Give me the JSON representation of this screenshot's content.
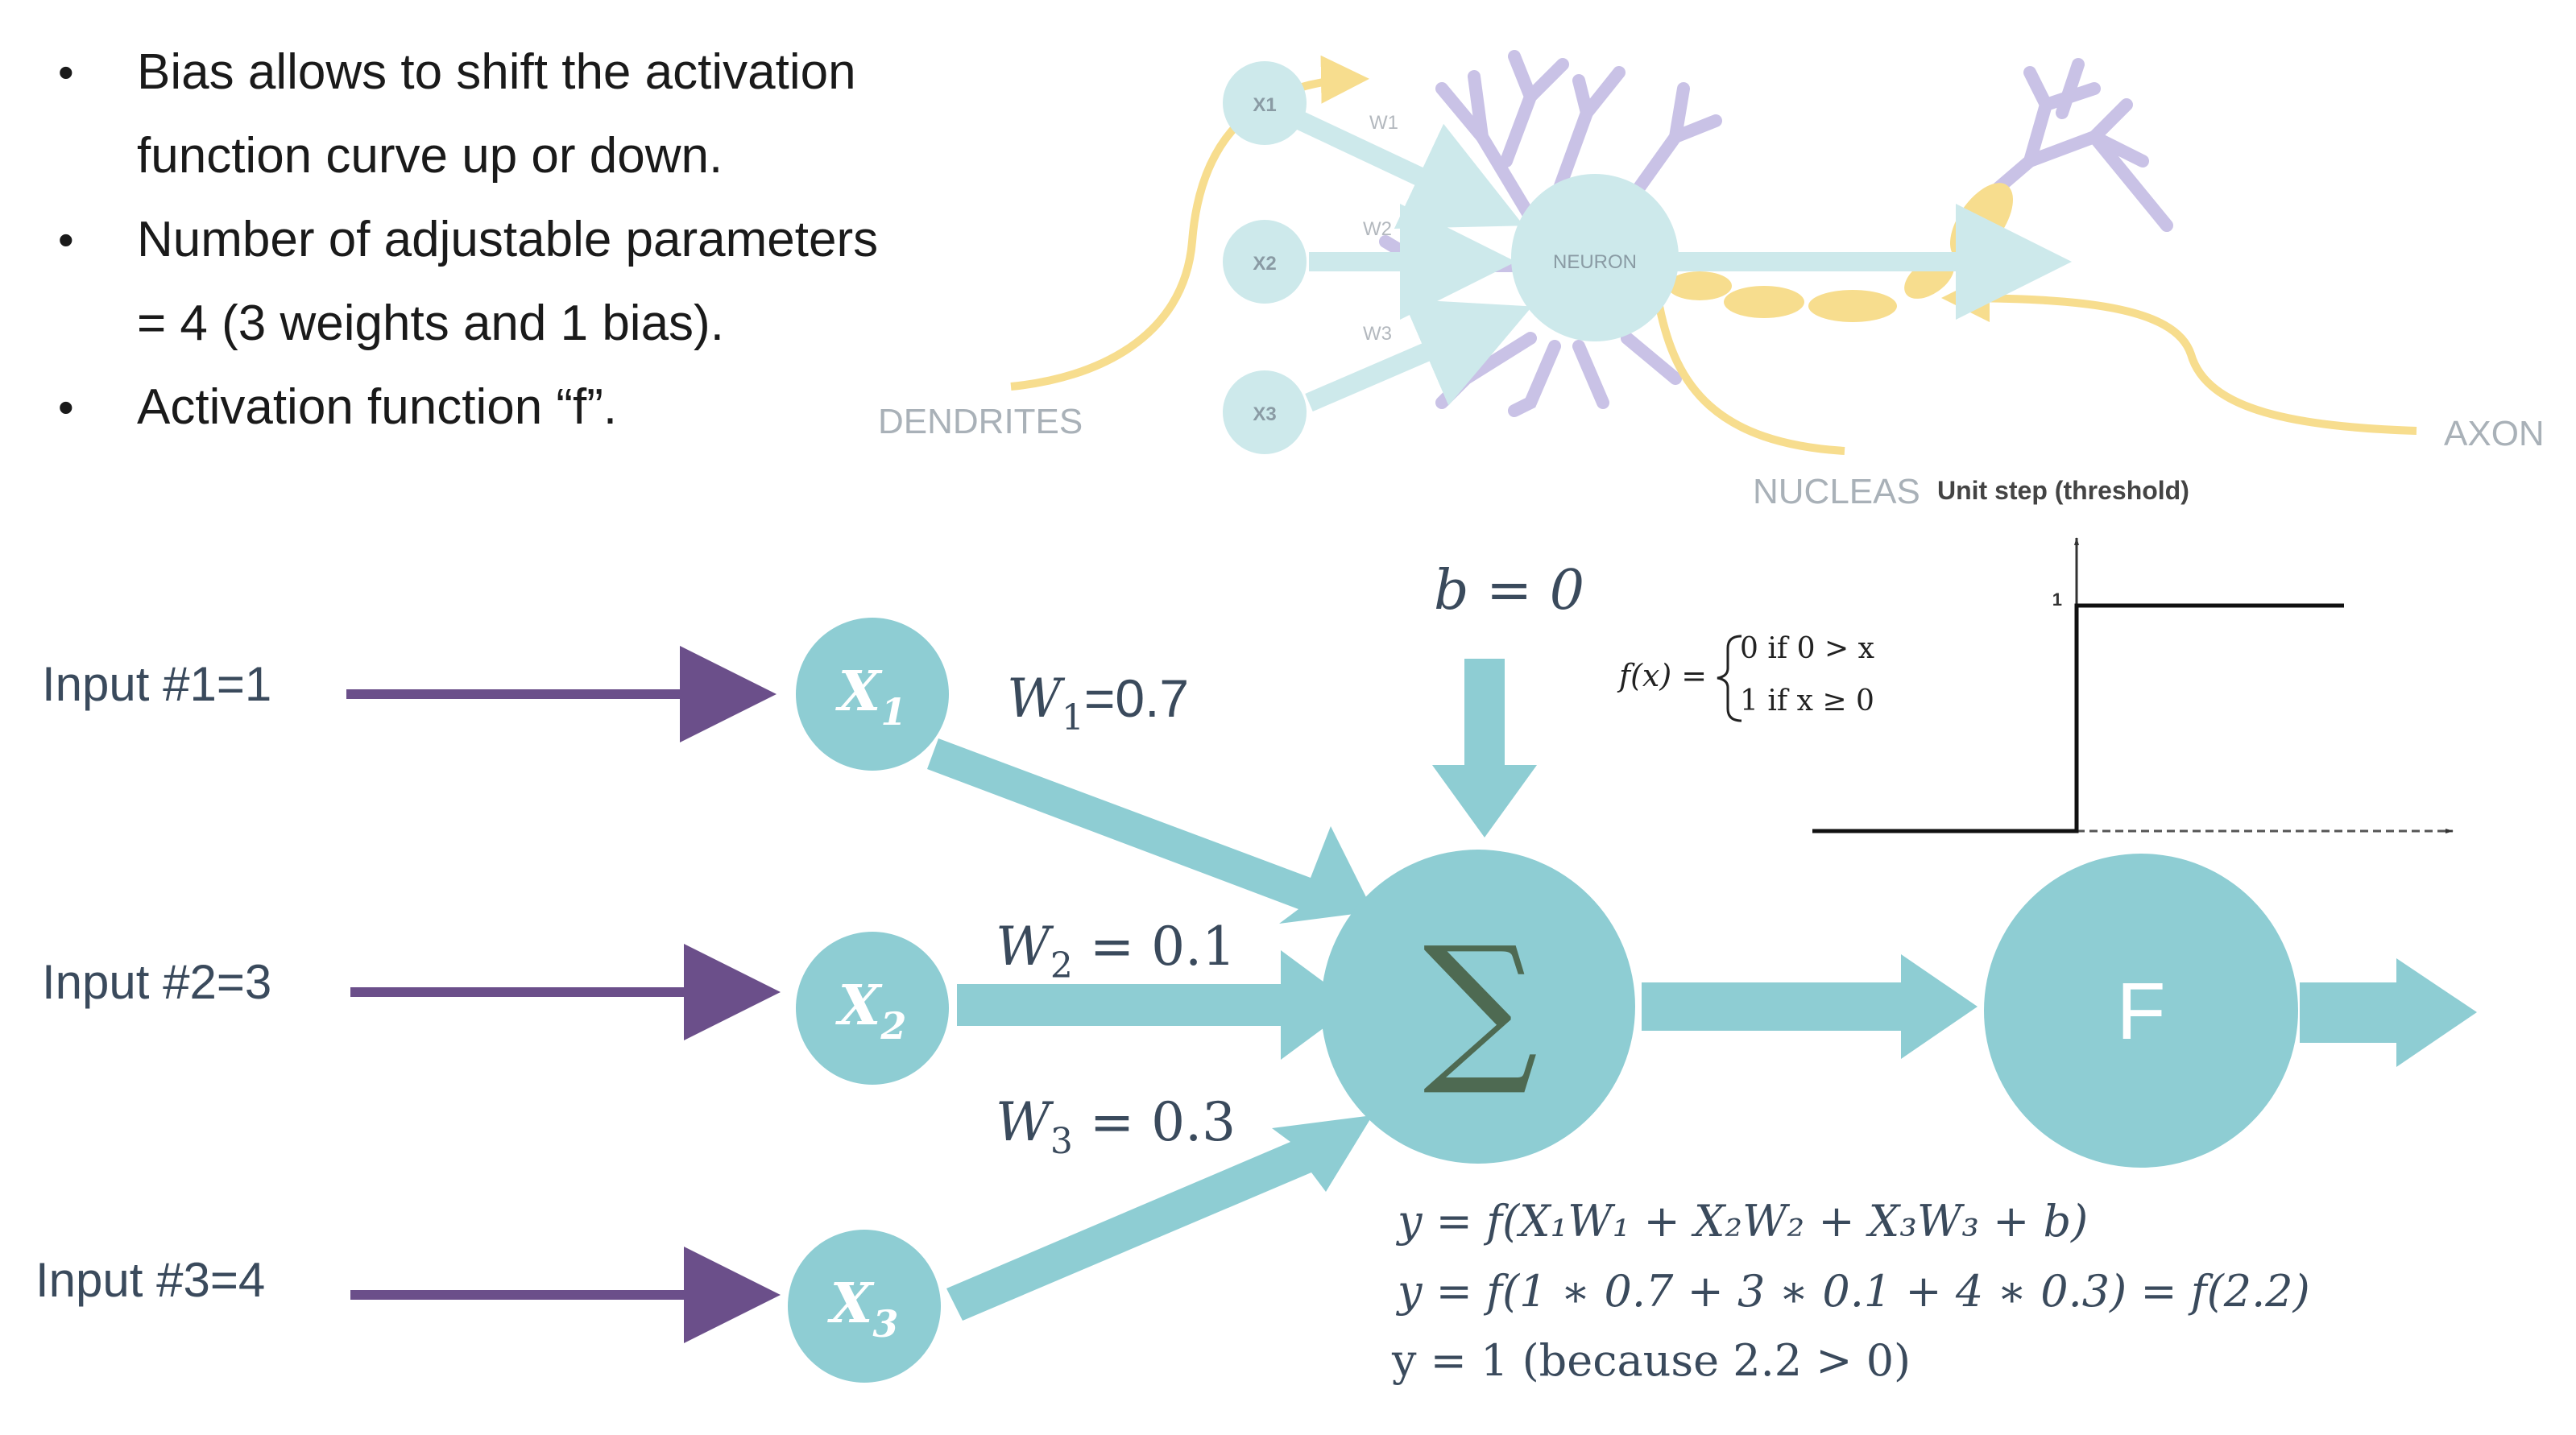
{
  "bullets": [
    "Bias allows to shift the activation",
    "function curve up or down.",
    "Number of adjustable parameters",
    "= 4 (3 weights and 1 bias).",
    "Activation function “f”."
  ],
  "bio_neuron": {
    "inputs": [
      "X1",
      "X2",
      "X3"
    ],
    "weights": [
      "W1",
      "W2",
      "W3"
    ],
    "neuron_label": "NEURON",
    "dendrites_label": "DENDRITES",
    "nucleus_label": "NUCLEAS",
    "axon_label": "AXON"
  },
  "step_chart": {
    "title": "Unit step (threshold)",
    "y_tick": "1",
    "formula_lhs": "f(x) =",
    "case1": "0 if  0 > x",
    "case2": "1 if  x ≥ 0"
  },
  "perceptron": {
    "inputs": [
      {
        "label": "Input #1=1",
        "node": "X",
        "sub": "1"
      },
      {
        "label": "Input #2=3",
        "node": "X",
        "sub": "2"
      },
      {
        "label": "Input #3=4",
        "node": "X",
        "sub": "3"
      }
    ],
    "weights": [
      {
        "sym": "W",
        "sub": "1",
        "val": "=0.7"
      },
      {
        "sym": "W",
        "sub": "2",
        "val": " = 0.1"
      },
      {
        "sym": "W",
        "sub": "3",
        "val": " = 0.3"
      }
    ],
    "bias": "b = 0",
    "sum_symbol": "∑",
    "activation_label": "F",
    "equations": [
      "y = f(X₁W₁ + X₂W₂ + X₃W₃ + b)",
      "y = f(1 ∗ 0.7 + 3 ∗ 0.1 + 4 ∗ 0.3) = f(2.2)",
      "y = 1 (because 2.2 > 0)"
    ]
  },
  "colors": {
    "teal": "#8ecdd3",
    "pale_teal": "#cde9eb",
    "purple_arrow": "#6b4f8a",
    "yellow": "#f7dd8e",
    "lavender": "#c9c2e6",
    "text_dark": "#3a4a5c"
  }
}
